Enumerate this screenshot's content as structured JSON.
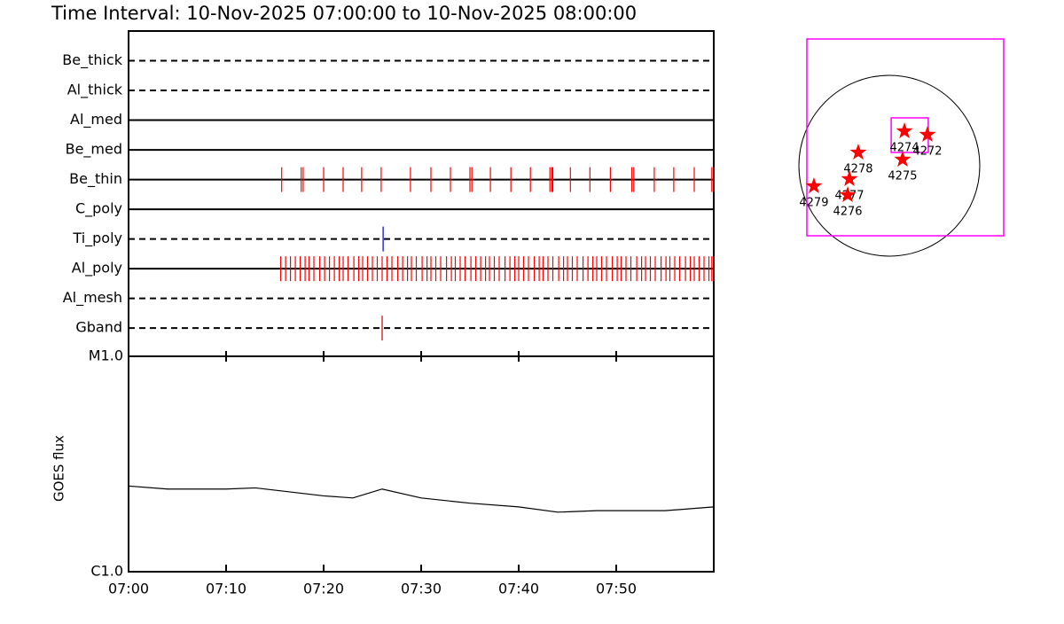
{
  "title": "Time Interval: 10-Nov-2025 07:00:00 to 10-Nov-2025 08:00:00",
  "chart_data": [
    {
      "type": "event",
      "xlim": [
        0,
        60
      ],
      "xticks": [
        {
          "value": 0,
          "label": "07:00"
        },
        {
          "value": 10,
          "label": "07:10"
        },
        {
          "value": 20,
          "label": "07:20"
        },
        {
          "value": 30,
          "label": "07:30"
        },
        {
          "value": 40,
          "label": "07:40"
        },
        {
          "value": 50,
          "label": "07:50"
        }
      ],
      "channels": [
        {
          "name": "Be_thick",
          "style": "dashed",
          "color": "#ff0000",
          "events": []
        },
        {
          "name": "Al_thick",
          "style": "dashed",
          "color": "#ff0000",
          "events": []
        },
        {
          "name": "Al_med",
          "style": "solid",
          "color": "#ff0000",
          "events": []
        },
        {
          "name": "Be_med",
          "style": "solid",
          "color": "#ff0000",
          "events": []
        },
        {
          "name": "Be_thin",
          "style": "solid",
          "color": "#ff0000",
          "events": [
            15.7,
            17.7,
            17.9,
            20,
            22,
            23.9,
            25.9,
            28.9,
            31,
            33,
            35,
            35.2,
            37.1,
            39.2,
            41.2,
            43.2,
            43.4,
            43.5,
            45.3,
            47.3,
            49.4,
            51.6,
            51.8,
            53.9,
            55.9,
            58,
            59.8,
            60
          ]
        },
        {
          "name": "C_poly",
          "style": "solid",
          "color": "#ff0000",
          "events": []
        },
        {
          "name": "Ti_poly",
          "style": "dashed",
          "color": "#0000cc",
          "events": [
            26.1
          ]
        },
        {
          "name": "Al_poly",
          "style": "solid",
          "color": "#ff0000",
          "events": [
            15.6,
            16.1,
            16.6,
            17.1,
            17.6,
            18.1,
            18.5,
            19,
            19.6,
            20.1,
            20.6,
            21.1,
            21.6,
            22,
            22.5,
            23.1,
            23.6,
            24,
            24.5,
            25,
            25.5,
            26,
            26.5,
            27,
            27.6,
            28.1,
            28.6,
            29,
            29.5,
            30.1,
            30.6,
            31,
            31.5,
            32,
            32.6,
            33.1,
            33.5,
            34,
            34.5,
            35.1,
            35.6,
            36.1,
            36.6,
            37,
            37.5,
            38,
            38.6,
            39.1,
            39.6,
            40,
            40.5,
            41,
            41.6,
            42.1,
            42.5,
            43,
            43.5,
            44.1,
            44.6,
            45,
            45.5,
            46,
            46.6,
            47.1,
            47.6,
            48,
            48.5,
            49,
            49.6,
            50.1,
            50.5,
            51,
            51.5,
            52.1,
            52.6,
            53,
            53.5,
            54,
            54.6,
            55.1,
            55.5,
            56,
            56.5,
            57.1,
            57.6,
            58,
            58.5,
            59,
            59.5,
            59.8,
            60
          ]
        },
        {
          "name": "Al_mesh",
          "style": "dashed",
          "color": "#ff0000",
          "events": []
        },
        {
          "name": "Gband",
          "style": "dashed",
          "color": "#cc0000",
          "events": [
            26
          ]
        }
      ]
    },
    {
      "type": "line",
      "y_label": "GOES flux",
      "log_scale": true,
      "xlim": [
        0,
        60
      ],
      "ylim": [
        1e-06,
        1e-05
      ],
      "yticks": [
        {
          "value": 1e-06,
          "label": "C1.0"
        },
        {
          "value": 1e-05,
          "label": "M1.0"
        }
      ],
      "x": [
        0,
        4,
        10,
        13,
        20,
        23,
        26,
        30,
        35,
        40,
        44,
        48,
        55,
        60
      ],
      "values": [
        2.5e-06,
        2.42e-06,
        2.42e-06,
        2.45e-06,
        2.25e-06,
        2.2e-06,
        2.42e-06,
        2.2e-06,
        2.08e-06,
        2e-06,
        1.89e-06,
        1.92e-06,
        1.92e-06,
        2e-06
      ],
      "color": "#000000"
    },
    {
      "type": "map",
      "solar_radius": 975,
      "fov": [
        {
          "center": [
            172,
            306
          ],
          "size": [
            2122,
            2122
          ],
          "color": "#ff00ff"
        },
        {
          "center": [
            220,
            330
          ],
          "size": [
            400,
            373
          ],
          "color": "#ff00ff"
        }
      ],
      "marker_color": "#ff0000",
      "regions": [
        {
          "label": "4274",
          "x": 163,
          "y": 373
        },
        {
          "label": "4272",
          "x": 411,
          "y": 335
        },
        {
          "label": "4275",
          "x": 143,
          "y": 67
        },
        {
          "label": "4278",
          "x": -335,
          "y": 143
        },
        {
          "label": "4277",
          "x": -430,
          "y": -143
        },
        {
          "label": "4276",
          "x": -449,
          "y": -315
        },
        {
          "label": "4279",
          "x": -813,
          "y": -220
        }
      ]
    }
  ]
}
